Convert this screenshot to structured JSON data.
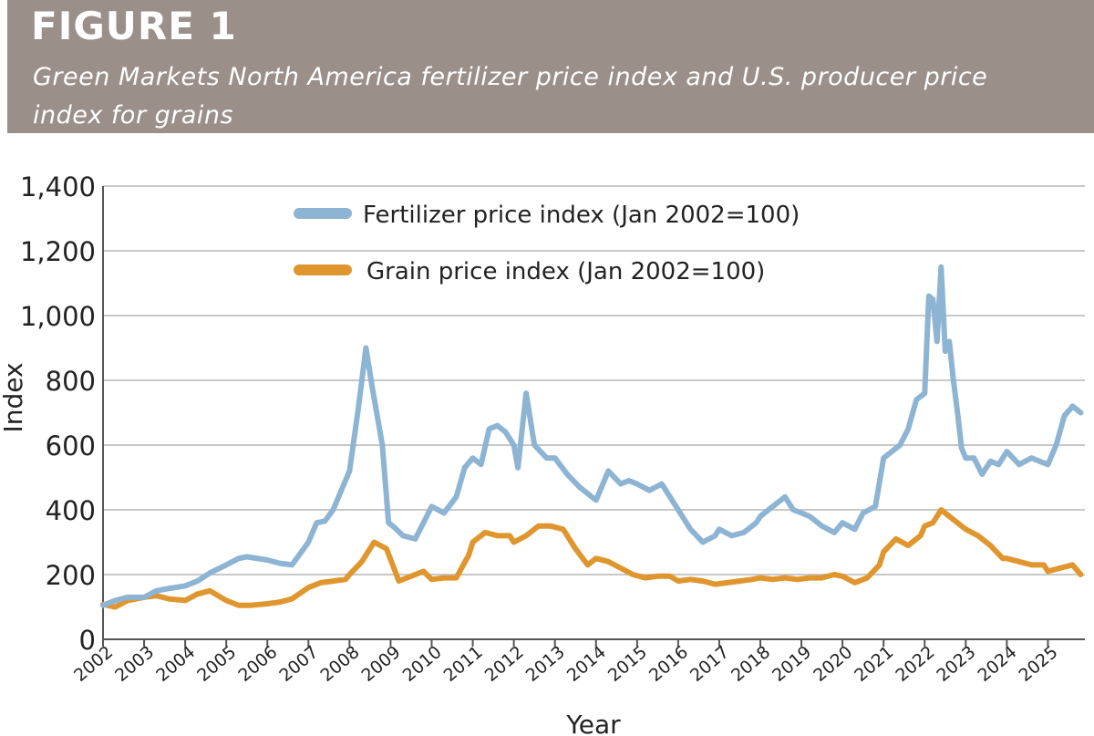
{
  "header": {
    "figure_label": "FIGURE 1",
    "subtitle": "Green Markets North America fertilizer price index and U.S. producer price index for grains"
  },
  "colors": {
    "banner": "#9a8f89",
    "fertilizer": "#8db4d3",
    "grain": "#e0962f",
    "grid": "#c8c8c8"
  },
  "chart_data": {
    "type": "line",
    "xlabel": "Year",
    "ylabel": "Index",
    "ylim": [
      0,
      1400
    ],
    "xlim": [
      2002,
      2025.9
    ],
    "yticks": [
      0,
      200,
      400,
      600,
      800,
      1000,
      1200,
      1400
    ],
    "ytick_labels": [
      "0",
      "200",
      "400",
      "600",
      "800",
      "1,000",
      "1,200",
      "1,400"
    ],
    "xtick_labels": [
      "2002",
      "2003",
      "2004",
      "2005",
      "2006",
      "2007",
      "2008",
      "2009",
      "2010",
      "2011",
      "2012",
      "2013",
      "2014",
      "2015",
      "2016",
      "2017",
      "2018",
      "2019",
      "2020",
      "2021",
      "2022",
      "2023",
      "2024",
      "2025"
    ],
    "grid": "horizontal",
    "legend_position": "top",
    "series": [
      {
        "name": "Fertilizer price index (Jan 2002=100)",
        "x": [
          2002.0,
          2002.3,
          2002.6,
          2003.0,
          2003.3,
          2003.5,
          2004.0,
          2004.3,
          2004.6,
          2005.0,
          2005.3,
          2005.5,
          2006.0,
          2006.3,
          2006.6,
          2007.0,
          2007.2,
          2007.4,
          2007.6,
          2007.8,
          2008.0,
          2008.2,
          2008.4,
          2008.55,
          2008.8,
          2008.95,
          2009.1,
          2009.3,
          2009.6,
          2009.8,
          2010.0,
          2010.3,
          2010.6,
          2010.8,
          2011.0,
          2011.2,
          2011.4,
          2011.6,
          2011.8,
          2012.0,
          2012.1,
          2012.3,
          2012.5,
          2012.8,
          2013.0,
          2013.3,
          2013.6,
          2013.9,
          2014.0,
          2014.3,
          2014.6,
          2014.8,
          2015.0,
          2015.3,
          2015.6,
          2015.8,
          2016.0,
          2016.3,
          2016.6,
          2016.9,
          2017.0,
          2017.3,
          2017.6,
          2017.9,
          2018.0,
          2018.2,
          2018.4,
          2018.6,
          2018.8,
          2019.0,
          2019.2,
          2019.5,
          2019.8,
          2020.0,
          2020.3,
          2020.5,
          2020.8,
          2021.0,
          2021.2,
          2021.4,
          2021.6,
          2021.8,
          2022.0,
          2022.1,
          2022.2,
          2022.3,
          2022.4,
          2022.5,
          2022.6,
          2022.7,
          2022.8,
          2022.9,
          2023.0,
          2023.2,
          2023.4,
          2023.6,
          2023.8,
          2024.0,
          2024.3,
          2024.6,
          2024.8,
          2025.0,
          2025.2,
          2025.4,
          2025.6,
          2025.8
        ],
        "values": [
          105,
          120,
          130,
          130,
          150,
          155,
          165,
          180,
          205,
          230,
          250,
          255,
          245,
          235,
          230,
          300,
          360,
          365,
          400,
          460,
          520,
          700,
          900,
          780,
          600,
          360,
          345,
          320,
          310,
          360,
          410,
          390,
          440,
          530,
          560,
          540,
          650,
          660,
          640,
          600,
          530,
          760,
          600,
          560,
          560,
          510,
          470,
          440,
          430,
          520,
          480,
          490,
          480,
          460,
          480,
          440,
          400,
          340,
          300,
          320,
          340,
          320,
          330,
          360,
          380,
          400,
          420,
          440,
          400,
          390,
          380,
          350,
          330,
          360,
          340,
          390,
          410,
          560,
          580,
          600,
          650,
          740,
          760,
          1060,
          1050,
          920,
          1150,
          890,
          920,
          800,
          700,
          590,
          560,
          560,
          510,
          550,
          540,
          580,
          540,
          560,
          550,
          540,
          600,
          690,
          720,
          700
        ]
      },
      {
        "name": "Grain price index (Jan 2002=100)",
        "x": [
          2002.0,
          2002.3,
          2002.6,
          2003.0,
          2003.3,
          2003.6,
          2004.0,
          2004.3,
          2004.6,
          2005.0,
          2005.3,
          2005.6,
          2006.0,
          2006.3,
          2006.6,
          2007.0,
          2007.3,
          2007.6,
          2007.9,
          2008.0,
          2008.3,
          2008.6,
          2008.9,
          2009.2,
          2009.5,
          2009.8,
          2010.0,
          2010.3,
          2010.6,
          2010.9,
          2011.0,
          2011.3,
          2011.6,
          2011.9,
          2012.0,
          2012.3,
          2012.6,
          2012.9,
          2013.2,
          2013.5,
          2013.8,
          2014.0,
          2014.3,
          2014.6,
          2014.9,
          2015.2,
          2015.5,
          2015.8,
          2016.0,
          2016.3,
          2016.6,
          2016.9,
          2017.2,
          2017.5,
          2017.8,
          2018.0,
          2018.3,
          2018.6,
          2018.9,
          2019.2,
          2019.5,
          2019.8,
          2020.0,
          2020.3,
          2020.6,
          2020.9,
          2021.0,
          2021.3,
          2021.6,
          2021.9,
          2022.0,
          2022.2,
          2022.4,
          2022.6,
          2022.9,
          2023.0,
          2023.3,
          2023.6,
          2023.9,
          2024.0,
          2024.3,
          2024.6,
          2024.9,
          2025.0,
          2025.3,
          2025.6,
          2025.8
        ],
        "values": [
          108,
          100,
          120,
          130,
          135,
          125,
          120,
          140,
          150,
          120,
          105,
          105,
          110,
          115,
          125,
          160,
          175,
          180,
          185,
          200,
          240,
          300,
          280,
          180,
          195,
          210,
          185,
          190,
          190,
          260,
          300,
          330,
          320,
          320,
          300,
          320,
          350,
          350,
          340,
          280,
          230,
          250,
          240,
          220,
          200,
          190,
          195,
          195,
          180,
          185,
          180,
          170,
          175,
          180,
          185,
          190,
          185,
          190,
          185,
          190,
          190,
          200,
          195,
          175,
          190,
          230,
          270,
          310,
          290,
          320,
          350,
          360,
          400,
          380,
          350,
          340,
          320,
          290,
          250,
          250,
          240,
          230,
          230,
          210,
          220,
          230,
          200
        ]
      }
    ]
  }
}
